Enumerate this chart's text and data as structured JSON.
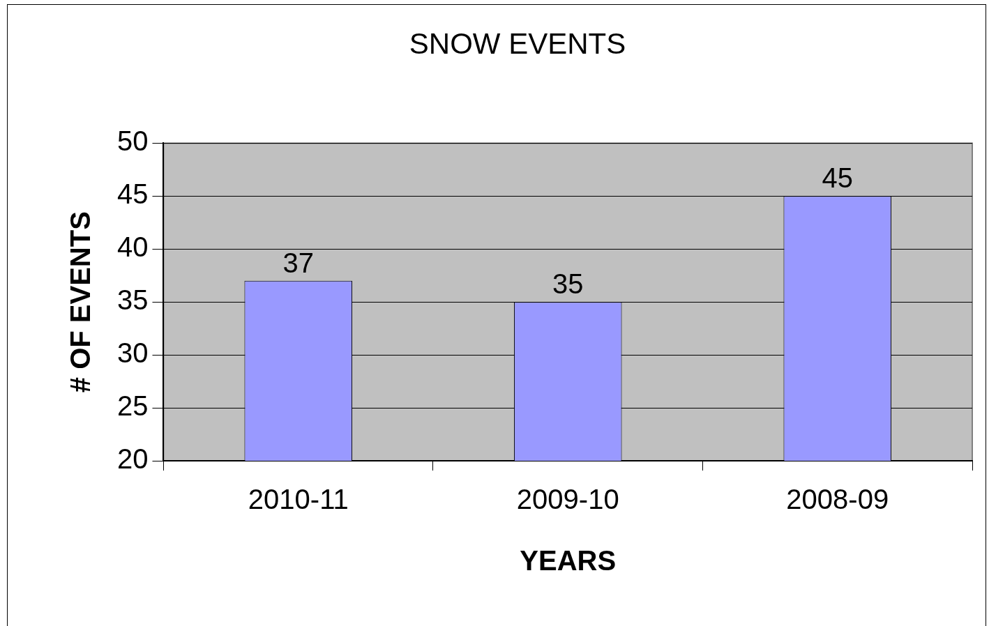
{
  "chart_data": {
    "type": "bar",
    "title": "SNOW EVENTS",
    "xlabel": "YEARS",
    "ylabel": "# OF EVENTS",
    "categories": [
      "2010-11",
      "2009-10",
      "2008-09"
    ],
    "values": [
      37,
      35,
      45
    ],
    "color": "#9999ff",
    "ylim": [
      20,
      50
    ],
    "yticks": [
      20,
      25,
      30,
      35,
      40,
      45,
      50
    ],
    "grid": "y",
    "data_labels": true
  }
}
